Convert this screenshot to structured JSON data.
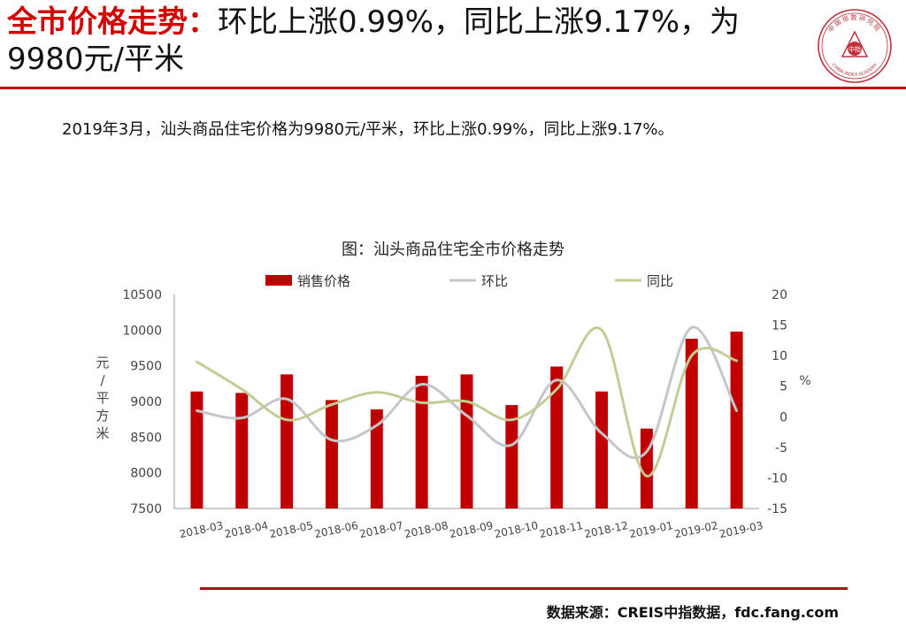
{
  "header": {
    "title_highlight": "全市价格走势：",
    "title_rest": "环比上涨0.99%，同比上涨9.17%，为9980元/平米"
  },
  "logo": {
    "arc_text": "中国指数研究院",
    "bottom_text": "CHINA INDEX ACADEMY",
    "center_text": "中指",
    "color": "#c0303a"
  },
  "summary": "2019年3月，汕头商品住宅价格为9980元/平米，环比上涨0.99%，同比上涨9.17%。",
  "chart_data": {
    "type": "bar",
    "title": "图：汕头商品住宅全市价格走势",
    "categories": [
      "2018-03",
      "2018-04",
      "2018-05",
      "2018-06",
      "2018-07",
      "2018-08",
      "2018-09",
      "2018-10",
      "2018-11",
      "2018-12",
      "2019-01",
      "2019-02",
      "2019-03"
    ],
    "series": [
      {
        "name": "销售价格",
        "type": "bar",
        "axis": "left",
        "color": "#c00000",
        "values": [
          9140,
          9120,
          9380,
          9020,
          8890,
          9360,
          9380,
          8950,
          9490,
          9140,
          8620,
          9880,
          9980
        ]
      },
      {
        "name": "环比",
        "type": "line",
        "axis": "right",
        "color": "#c3c7cb",
        "values": [
          1.0,
          -0.2,
          2.9,
          -3.8,
          -1.4,
          5.3,
          0.2,
          -4.6,
          6.0,
          -2.7,
          -5.7,
          14.6,
          0.99
        ]
      },
      {
        "name": "同比",
        "type": "line",
        "axis": "right",
        "color": "#c4cc96",
        "values": [
          9.0,
          4.5,
          -0.5,
          2.0,
          4.0,
          2.3,
          2.5,
          -0.5,
          4.5,
          14.2,
          -9.7,
          10.0,
          9.17
        ]
      }
    ],
    "ylabel_left": "元/平方米",
    "ylabel_right": "%",
    "ylim_left": [
      7500,
      10500
    ],
    "yticks_left": [
      7500,
      8000,
      8500,
      9000,
      9500,
      10000,
      10500
    ],
    "ylim_right": [
      -15,
      20
    ],
    "yticks_right": [
      -15,
      -10,
      -5,
      0,
      5,
      10,
      15,
      20
    ],
    "legend": "top-center",
    "grid": false
  },
  "footer": {
    "source": "数据来源：CREIS中指数据，fdc.fang.com"
  }
}
